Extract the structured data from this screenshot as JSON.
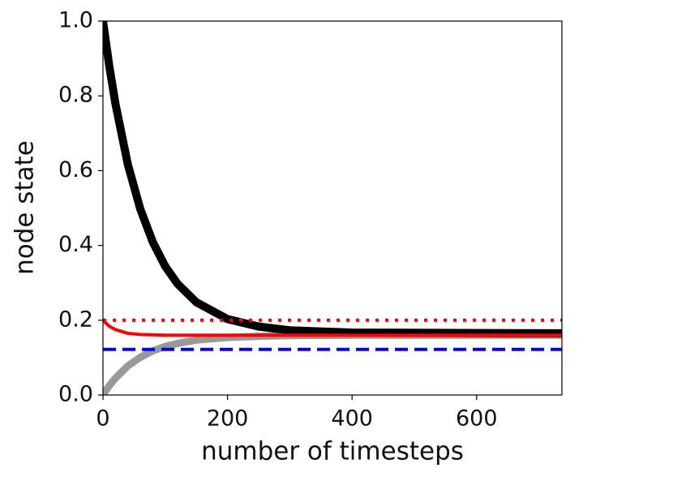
{
  "chart_data": {
    "type": "line",
    "xlabel": "number of timesteps",
    "ylabel": "node state",
    "x": [
      0,
      10,
      20,
      40,
      60,
      80,
      100,
      120,
      150,
      200,
      250,
      300,
      400,
      737
    ],
    "series": [
      {
        "color": "#999999",
        "width": 9,
        "style": "solid",
        "values": [
          0,
          0.025,
          0.045,
          0.078,
          0.101,
          0.118,
          0.13,
          0.138,
          0.147,
          0.154,
          0.157,
          0.159,
          0.16,
          0.16
        ]
      },
      {
        "color": "#000000",
        "width": 10,
        "style": "solid",
        "values": [
          1.0,
          0.881,
          0.779,
          0.616,
          0.497,
          0.409,
          0.344,
          0.297,
          0.248,
          0.203,
          0.183,
          0.173,
          0.167,
          0.165
        ]
      },
      {
        "color": "#ff0000",
        "width": 4,
        "style": "solid",
        "values": [
          0.2,
          0.184,
          0.175,
          0.165,
          0.162,
          0.161,
          0.16,
          0.16,
          0.16,
          0.16,
          0.16,
          0.16,
          0.16,
          0.16
        ]
      },
      {
        "color": "#ff0000",
        "width": 4,
        "style": "dotted",
        "values": [
          0.2,
          0.2,
          0.2,
          0.2,
          0.2,
          0.2,
          0.2,
          0.2,
          0.2,
          0.2,
          0.2,
          0.2,
          0.2,
          0.2
        ]
      },
      {
        "color": "#0000ff",
        "width": 4,
        "style": "dashed",
        "values": [
          0.122,
          0.122,
          0.122,
          0.122,
          0.122,
          0.122,
          0.122,
          0.122,
          0.122,
          0.122,
          0.122,
          0.122,
          0.122,
          0.122
        ]
      }
    ],
    "xlim": [
      0,
      737
    ],
    "ylim": [
      0,
      1
    ],
    "xticks": [
      0,
      200,
      400,
      600
    ],
    "yticks": [
      {
        "value": 0,
        "label": "0.0"
      },
      {
        "value": 0.2,
        "label": "0.2"
      },
      {
        "value": 0.4,
        "label": "0.4"
      },
      {
        "value": 0.6,
        "label": "0.6"
      },
      {
        "value": 0.8,
        "label": "0.8"
      },
      {
        "value": 1,
        "label": "1.0"
      }
    ]
  }
}
